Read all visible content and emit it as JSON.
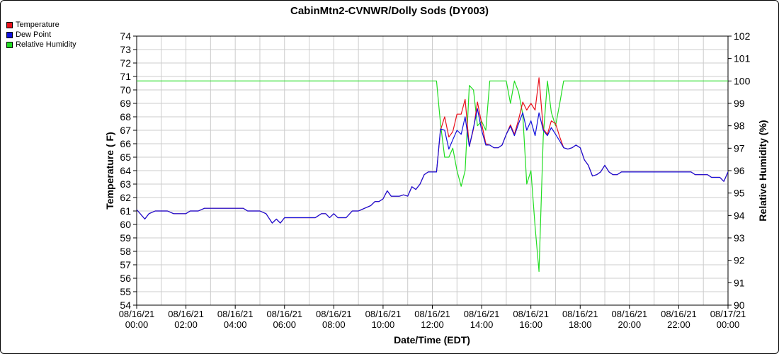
{
  "chart_data": {
    "type": "line",
    "title": "CabinMtn2-CVNWR/Dolly Sods (DY003)",
    "xlabel": "Date/Time (EDT)",
    "ylabel": "Temperature ( F)",
    "y2label": "Relative Humidity (%)",
    "x_tick_labels": [
      [
        "08/16/21",
        "00:00"
      ],
      [
        "08/16/21",
        "02:00"
      ],
      [
        "08/16/21",
        "04:00"
      ],
      [
        "08/16/21",
        "06:00"
      ],
      [
        "08/16/21",
        "08:00"
      ],
      [
        "08/16/21",
        "10:00"
      ],
      [
        "08/16/21",
        "12:00"
      ],
      [
        "08/16/21",
        "14:00"
      ],
      [
        "08/16/21",
        "16:00"
      ],
      [
        "08/16/21",
        "18:00"
      ],
      [
        "08/16/21",
        "20:00"
      ],
      [
        "08/16/21",
        "22:00"
      ],
      [
        "08/17/21",
        "00:00"
      ]
    ],
    "xlim": [
      0,
      24
    ],
    "ylim": [
      54,
      74
    ],
    "y2lim": [
      90,
      102
    ],
    "grid": true,
    "legend_position": "top-left",
    "series": [
      {
        "name": "Temperature",
        "color": "#e8101b",
        "axis": "left",
        "points": [
          [
            0,
            61.1
          ],
          [
            0.33,
            60.4
          ],
          [
            0.5,
            60.8
          ],
          [
            0.75,
            61.0
          ],
          [
            1.25,
            61.0
          ],
          [
            1.5,
            60.8
          ],
          [
            2.0,
            60.8
          ],
          [
            2.17,
            61.0
          ],
          [
            2.5,
            61.0
          ],
          [
            2.75,
            61.2
          ],
          [
            4.0,
            61.2
          ],
          [
            4.33,
            61.2
          ],
          [
            4.5,
            61.0
          ],
          [
            5.0,
            61.0
          ],
          [
            5.25,
            60.8
          ],
          [
            5.5,
            60.1
          ],
          [
            5.67,
            60.4
          ],
          [
            5.83,
            60.1
          ],
          [
            6.0,
            60.5
          ],
          [
            7.0,
            60.5
          ],
          [
            7.25,
            60.5
          ],
          [
            7.5,
            60.8
          ],
          [
            7.67,
            60.8
          ],
          [
            7.83,
            60.5
          ],
          [
            8.0,
            60.8
          ],
          [
            8.17,
            60.5
          ],
          [
            8.5,
            60.5
          ],
          [
            8.75,
            61.0
          ],
          [
            9.0,
            61.0
          ],
          [
            9.25,
            61.2
          ],
          [
            9.5,
            61.4
          ],
          [
            9.67,
            61.7
          ],
          [
            9.83,
            61.7
          ],
          [
            10.0,
            61.9
          ],
          [
            10.17,
            62.5
          ],
          [
            10.33,
            62.1
          ],
          [
            10.67,
            62.1
          ],
          [
            10.83,
            62.2
          ],
          [
            11.0,
            62.1
          ],
          [
            11.17,
            62.8
          ],
          [
            11.33,
            62.6
          ],
          [
            11.5,
            63.0
          ],
          [
            11.67,
            63.7
          ],
          [
            11.83,
            63.9
          ],
          [
            12.17,
            63.9
          ],
          [
            12.33,
            67.0
          ],
          [
            12.5,
            68.0
          ],
          [
            12.67,
            66.5
          ],
          [
            12.83,
            66.9
          ],
          [
            13.0,
            68.2
          ],
          [
            13.17,
            68.2
          ],
          [
            13.33,
            69.3
          ],
          [
            13.5,
            65.8
          ],
          [
            13.67,
            67.1
          ],
          [
            13.83,
            69.1
          ],
          [
            14.0,
            67.5
          ],
          [
            14.17,
            66.0
          ],
          [
            14.33,
            65.9
          ],
          [
            14.5,
            65.7
          ],
          [
            14.67,
            65.7
          ],
          [
            14.83,
            65.9
          ],
          [
            15.0,
            66.7
          ],
          [
            15.17,
            67.4
          ],
          [
            15.33,
            66.7
          ],
          [
            15.5,
            67.8
          ],
          [
            15.67,
            69.1
          ],
          [
            15.83,
            68.5
          ],
          [
            16.0,
            69.0
          ],
          [
            16.17,
            68.5
          ],
          [
            16.33,
            70.9
          ],
          [
            16.5,
            67.1
          ],
          [
            16.67,
            66.7
          ],
          [
            16.83,
            67.7
          ],
          [
            17.0,
            67.5
          ],
          [
            17.17,
            66.5
          ],
          [
            17.33,
            65.7
          ],
          [
            17.5,
            65.6
          ],
          [
            17.67,
            65.7
          ],
          [
            17.83,
            65.9
          ],
          [
            18.0,
            65.7
          ],
          [
            18.17,
            64.8
          ],
          [
            18.33,
            64.4
          ],
          [
            18.5,
            63.6
          ],
          [
            18.67,
            63.7
          ],
          [
            18.83,
            63.9
          ],
          [
            19.0,
            64.4
          ],
          [
            19.17,
            63.9
          ],
          [
            19.33,
            63.7
          ],
          [
            19.5,
            63.7
          ],
          [
            19.67,
            63.9
          ],
          [
            20.0,
            63.9
          ],
          [
            22.5,
            63.9
          ],
          [
            22.67,
            63.7
          ],
          [
            23.17,
            63.7
          ],
          [
            23.33,
            63.5
          ],
          [
            23.67,
            63.5
          ],
          [
            23.83,
            63.2
          ],
          [
            24.0,
            63.9
          ],
          [
            24.17,
            64.0
          ],
          [
            24.33,
            64.3
          ]
        ]
      },
      {
        "name": "Dew Point",
        "color": "#1010dd",
        "axis": "left",
        "points": [
          [
            0,
            61.1
          ],
          [
            0.33,
            60.4
          ],
          [
            0.5,
            60.8
          ],
          [
            0.75,
            61.0
          ],
          [
            1.25,
            61.0
          ],
          [
            1.5,
            60.8
          ],
          [
            2.0,
            60.8
          ],
          [
            2.17,
            61.0
          ],
          [
            2.5,
            61.0
          ],
          [
            2.75,
            61.2
          ],
          [
            4.0,
            61.2
          ],
          [
            4.33,
            61.2
          ],
          [
            4.5,
            61.0
          ],
          [
            5.0,
            61.0
          ],
          [
            5.25,
            60.8
          ],
          [
            5.5,
            60.1
          ],
          [
            5.67,
            60.4
          ],
          [
            5.83,
            60.1
          ],
          [
            6.0,
            60.5
          ],
          [
            7.0,
            60.5
          ],
          [
            7.25,
            60.5
          ],
          [
            7.5,
            60.8
          ],
          [
            7.67,
            60.8
          ],
          [
            7.83,
            60.5
          ],
          [
            8.0,
            60.8
          ],
          [
            8.17,
            60.5
          ],
          [
            8.5,
            60.5
          ],
          [
            8.75,
            61.0
          ],
          [
            9.0,
            61.0
          ],
          [
            9.25,
            61.2
          ],
          [
            9.5,
            61.4
          ],
          [
            9.67,
            61.7
          ],
          [
            9.83,
            61.7
          ],
          [
            10.0,
            61.9
          ],
          [
            10.17,
            62.5
          ],
          [
            10.33,
            62.1
          ],
          [
            10.67,
            62.1
          ],
          [
            10.83,
            62.2
          ],
          [
            11.0,
            62.1
          ],
          [
            11.17,
            62.8
          ],
          [
            11.33,
            62.6
          ],
          [
            11.5,
            63.0
          ],
          [
            11.67,
            63.7
          ],
          [
            11.83,
            63.9
          ],
          [
            12.17,
            63.9
          ],
          [
            12.33,
            67.1
          ],
          [
            12.5,
            67.0
          ],
          [
            12.67,
            65.6
          ],
          [
            12.83,
            66.3
          ],
          [
            13.0,
            67.0
          ],
          [
            13.17,
            66.7
          ],
          [
            13.33,
            68.0
          ],
          [
            13.5,
            65.8
          ],
          [
            13.67,
            67.2
          ],
          [
            13.83,
            68.6
          ],
          [
            14.0,
            67.0
          ],
          [
            14.17,
            65.9
          ],
          [
            14.33,
            65.9
          ],
          [
            14.5,
            65.7
          ],
          [
            14.67,
            65.7
          ],
          [
            14.83,
            65.9
          ],
          [
            15.0,
            66.7
          ],
          [
            15.17,
            67.3
          ],
          [
            15.33,
            66.6
          ],
          [
            15.5,
            67.5
          ],
          [
            15.67,
            68.3
          ],
          [
            15.83,
            67.0
          ],
          [
            16.0,
            67.7
          ],
          [
            16.17,
            66.6
          ],
          [
            16.33,
            68.3
          ],
          [
            16.5,
            67.0
          ],
          [
            16.67,
            66.6
          ],
          [
            16.83,
            67.2
          ],
          [
            17.0,
            66.7
          ],
          [
            17.17,
            66.2
          ],
          [
            17.33,
            65.7
          ],
          [
            17.5,
            65.6
          ],
          [
            17.67,
            65.7
          ],
          [
            17.83,
            65.9
          ],
          [
            18.0,
            65.7
          ],
          [
            18.17,
            64.8
          ],
          [
            18.33,
            64.4
          ],
          [
            18.5,
            63.6
          ],
          [
            18.67,
            63.7
          ],
          [
            18.83,
            63.9
          ],
          [
            19.0,
            64.4
          ],
          [
            19.17,
            63.9
          ],
          [
            19.33,
            63.7
          ],
          [
            19.5,
            63.7
          ],
          [
            19.67,
            63.9
          ],
          [
            20.0,
            63.9
          ],
          [
            22.5,
            63.9
          ],
          [
            22.67,
            63.7
          ],
          [
            23.17,
            63.7
          ],
          [
            23.33,
            63.5
          ],
          [
            23.67,
            63.5
          ],
          [
            23.83,
            63.2
          ],
          [
            24.0,
            63.9
          ],
          [
            24.17,
            64.0
          ],
          [
            24.33,
            64.3
          ]
        ]
      },
      {
        "name": "Relative Humidity",
        "color": "#22dd22",
        "axis": "right",
        "points": [
          [
            0,
            100
          ],
          [
            11.83,
            100
          ],
          [
            12.0,
            100
          ],
          [
            12.17,
            100
          ],
          [
            12.33,
            98.1
          ],
          [
            12.5,
            96.6
          ],
          [
            12.67,
            96.6
          ],
          [
            12.83,
            97.0
          ],
          [
            13.0,
            96.0
          ],
          [
            13.17,
            95.3
          ],
          [
            13.33,
            96.0
          ],
          [
            13.5,
            99.8
          ],
          [
            13.67,
            99.6
          ],
          [
            13.83,
            98.0
          ],
          [
            14.0,
            98.2
          ],
          [
            14.17,
            97.8
          ],
          [
            14.33,
            100
          ],
          [
            14.5,
            100
          ],
          [
            14.83,
            100
          ],
          [
            15.0,
            100
          ],
          [
            15.17,
            99.0
          ],
          [
            15.33,
            100
          ],
          [
            15.5,
            99.5
          ],
          [
            15.67,
            98.5
          ],
          [
            15.83,
            95.4
          ],
          [
            16.0,
            96.0
          ],
          [
            16.17,
            93.5
          ],
          [
            16.33,
            91.5
          ],
          [
            16.5,
            97.5
          ],
          [
            16.67,
            100
          ],
          [
            16.83,
            98.6
          ],
          [
            17.0,
            98.0
          ],
          [
            17.17,
            99.0
          ],
          [
            17.33,
            100
          ],
          [
            24.33,
            100
          ]
        ]
      }
    ]
  }
}
